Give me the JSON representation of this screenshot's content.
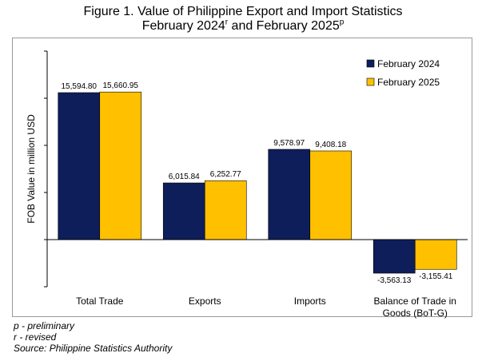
{
  "title_line1": "Figure 1. Value of Philippine Export and Import Statistics",
  "title_line2_a": "February 2024",
  "title_line2_sup_a": "r",
  "title_line2_b": " and February 2025",
  "title_line2_sup_b": "p",
  "notes": [
    "p - preliminary",
    "r - revised",
    "Source: Philippine Statistics Authority"
  ],
  "colors": {
    "feb2024": "#0e1e5b",
    "feb2025": "#ffc000",
    "axis": "#000000",
    "frame": "#9a9a9a"
  },
  "chart_data": {
    "type": "bar",
    "title": "Figure 1. Value of Philippine Export and Import Statistics February 2024r and February 2025p",
    "xlabel": "",
    "ylabel": "FOB Value in million USD",
    "categories": [
      "Total Trade",
      "Exports",
      "Imports",
      "Balance of Trade in Goods (BoT-G)"
    ],
    "category_lines": [
      [
        "Total Trade"
      ],
      [
        "Exports"
      ],
      [
        "Imports"
      ],
      [
        "Balance of Trade in",
        "Goods (BoT-G)"
      ]
    ],
    "series": [
      {
        "name": "February 2024",
        "values": [
          15594.8,
          6015.84,
          9578.97,
          -3563.13
        ],
        "labels": [
          "15,594.80",
          "6,015.84",
          "9,578.97",
          "-3,563.13"
        ]
      },
      {
        "name": "February 2025",
        "values": [
          15660.95,
          6252.77,
          9408.18,
          -3155.41
        ],
        "labels": [
          "15,660.95",
          "6,252.77",
          "9,408.18",
          "-3,155.41"
        ]
      }
    ],
    "ylim": [
      -5000,
      20000
    ],
    "ytick_step": 5000,
    "legend_position": "top-right",
    "grid": false
  }
}
